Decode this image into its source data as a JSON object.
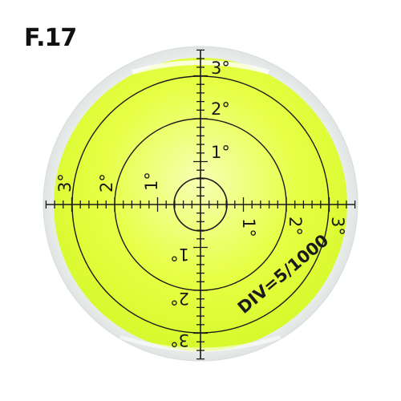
{
  "model_label": "F.17",
  "division_label": "DIV=5/1000",
  "scale_marks": {
    "one": "1°",
    "two": "2°",
    "three": "3°"
  },
  "colors": {
    "liquid": "#e3ff3a",
    "liquid_center": "#f4ffa8",
    "housing": "#f1f4f3",
    "ink": "#1a1a1a"
  }
}
